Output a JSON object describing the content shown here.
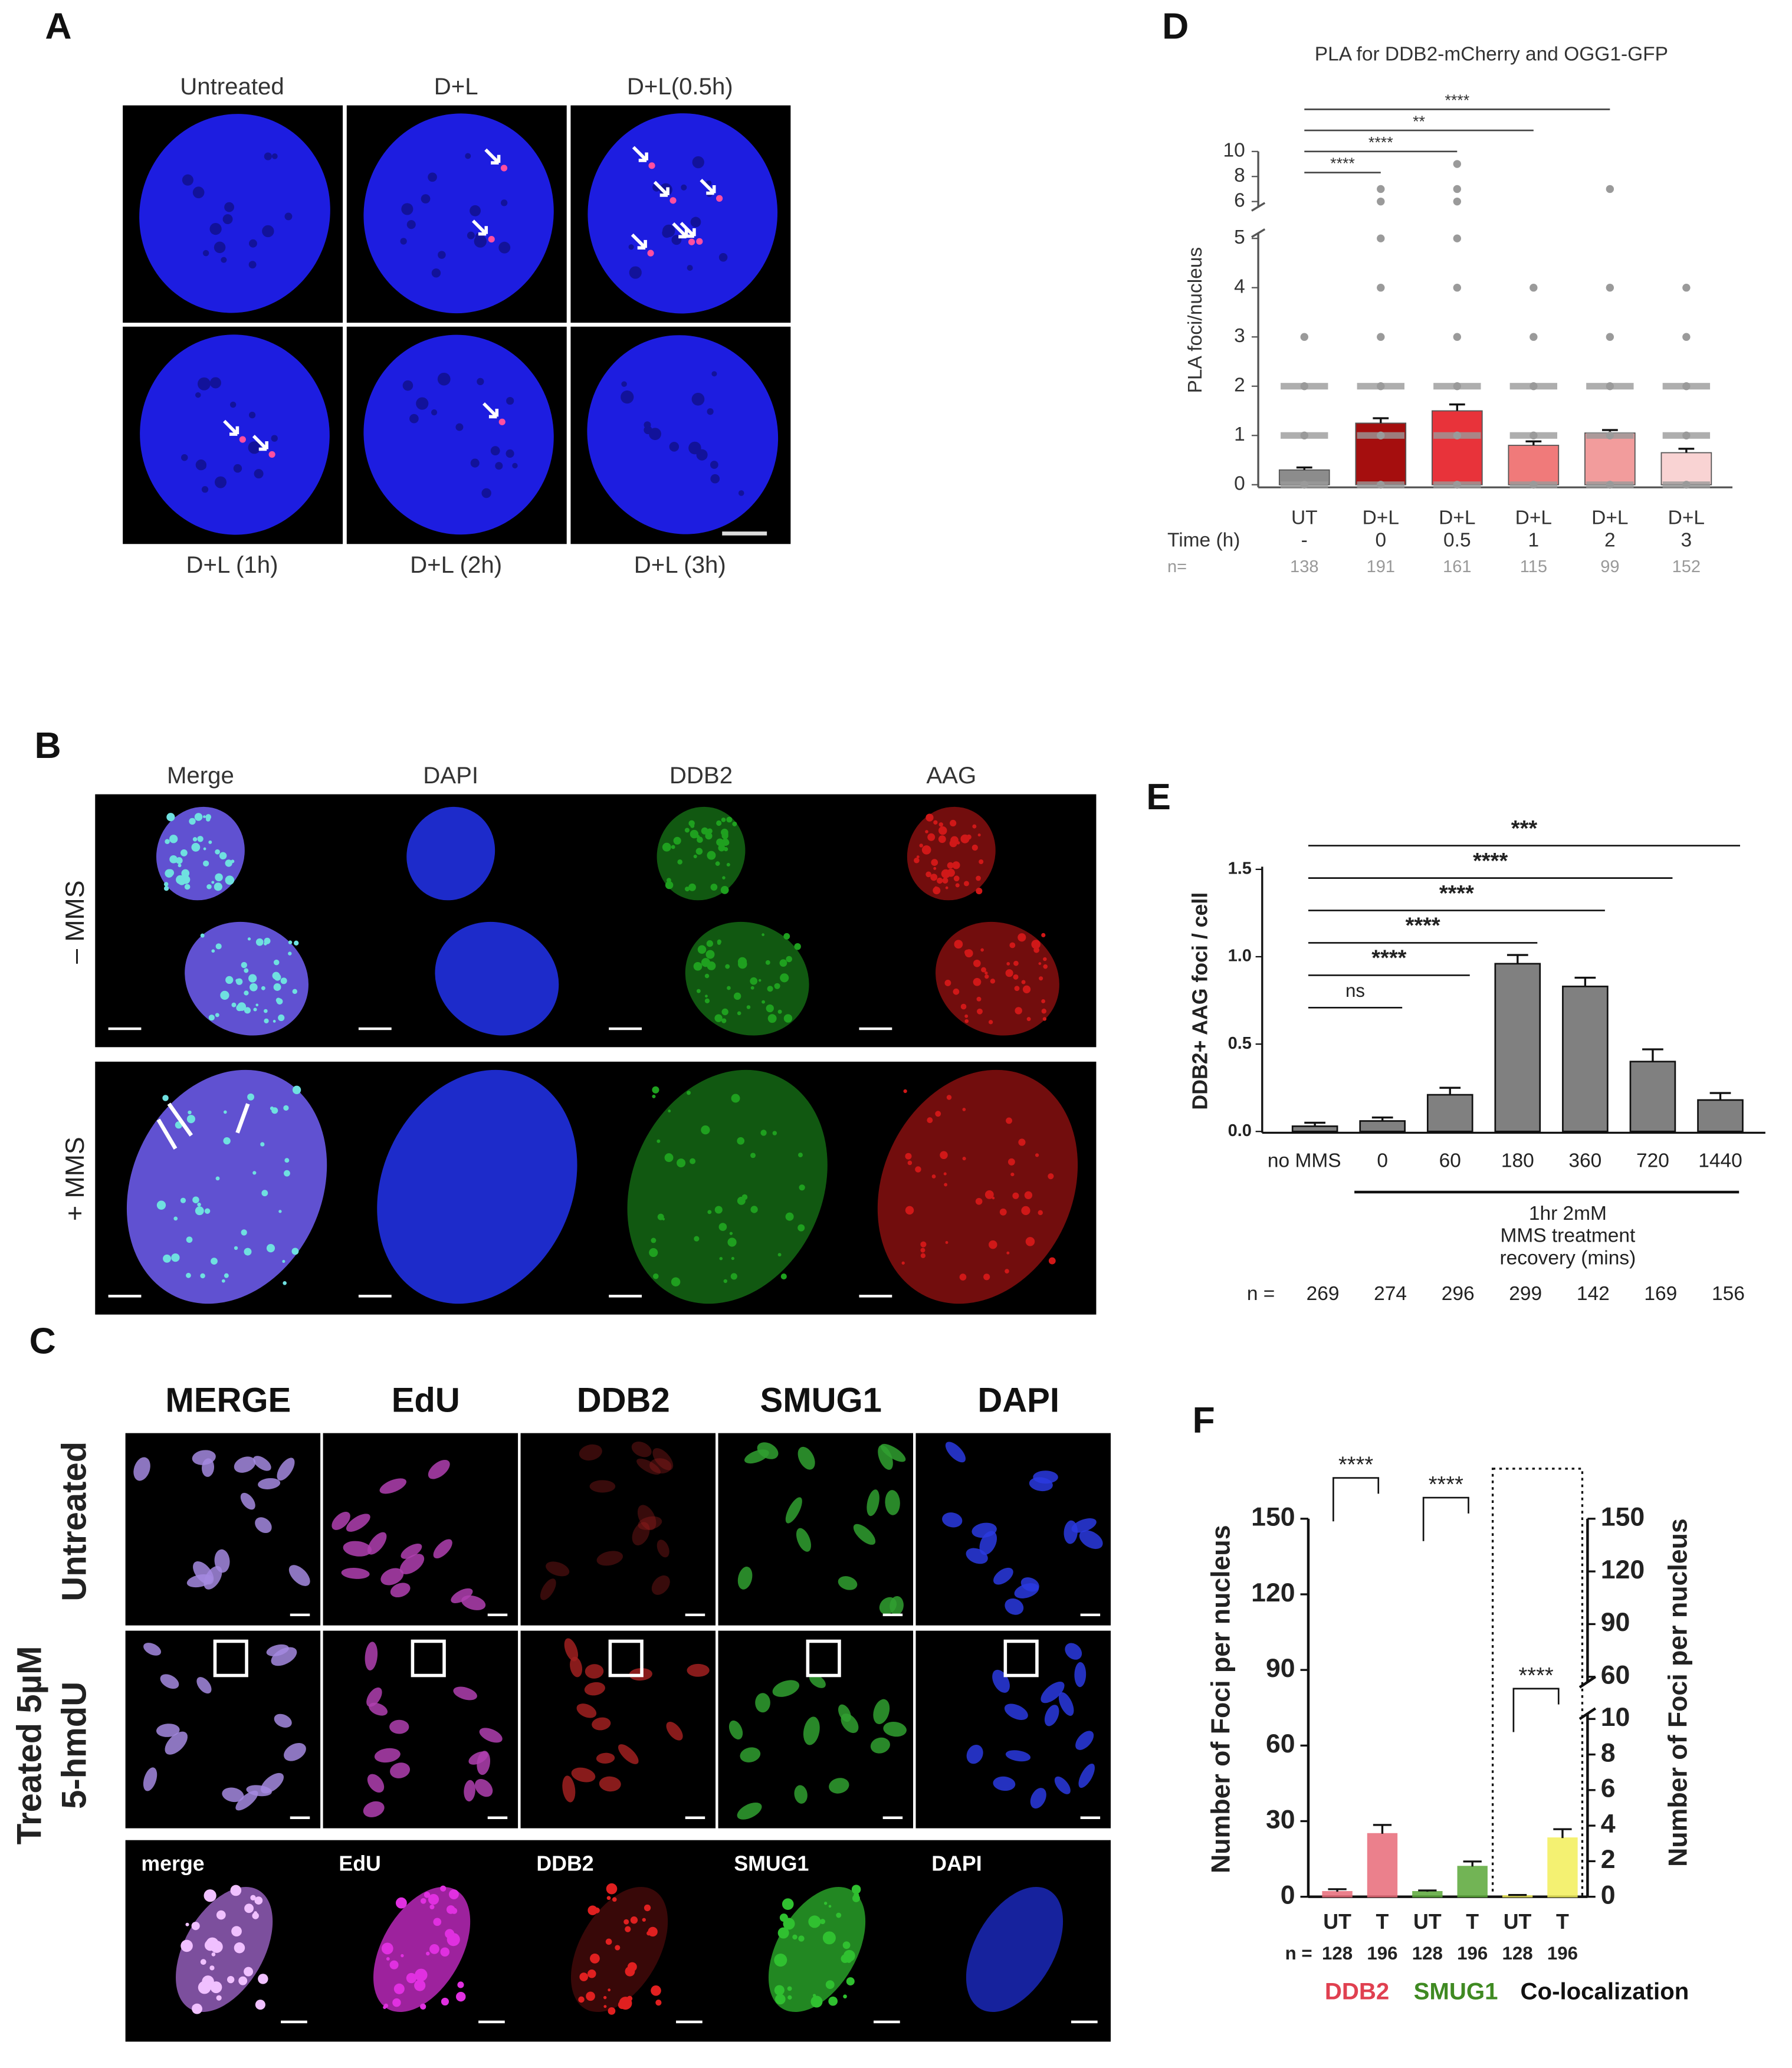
{
  "panel_a": {
    "label": "A",
    "top_labels": [
      "Untreated",
      "D+L",
      "D+L(0.5h)"
    ],
    "bottom_labels": [
      "D+L (1h)",
      "D+L (2h)",
      "D+L (3h)"
    ]
  },
  "panel_b": {
    "label": "B",
    "columns": [
      "Merge",
      "DAPI",
      "DDB2",
      "AAG"
    ],
    "rows": [
      "– MMS",
      "+ MMS"
    ]
  },
  "panel_c": {
    "label": "C",
    "columns": [
      "MERGE",
      "EdU",
      "DDB2",
      "SMUG1",
      "DAPI"
    ],
    "untreated_row": "Untreated",
    "treated_row": [
      "Treated 5µM",
      "5-hmdU"
    ],
    "zoom_columns": [
      "merge",
      "EdU",
      "DDB2",
      "SMUG1",
      "DAPI"
    ]
  },
  "chart_data": [
    {
      "panel": "D",
      "type": "bar",
      "title": "PLA for DDB2-mCherry and OGG1-GFP",
      "y_label": "PLA foci/nucleus",
      "categories": [
        "UT",
        "D+L",
        "D+L",
        "D+L",
        "D+L",
        "D+L"
      ],
      "time_label": "Time (h)",
      "time": [
        "-",
        "0",
        "0.5",
        "1",
        "2",
        "3"
      ],
      "n_label": "n=",
      "n": [
        138,
        191,
        161,
        115,
        99,
        152
      ],
      "values": [
        0.3,
        1.25,
        1.5,
        0.8,
        1.05,
        0.65
      ],
      "errors": [
        0.05,
        0.1,
        0.13,
        0.08,
        0.06,
        0.08
      ],
      "colors": [
        "#8c8c8c",
        "#a50e0e",
        "#e8333a",
        "#f07a7a",
        "#f29c9c",
        "#f9d3d3"
      ],
      "points": [
        [
          0,
          1,
          2,
          3
        ],
        [
          0,
          1,
          2,
          3,
          4,
          5,
          6,
          7
        ],
        [
          0,
          1,
          2,
          3,
          4,
          5,
          6,
          7,
          9
        ],
        [
          0,
          1,
          2,
          3,
          4
        ],
        [
          0,
          1,
          2,
          3,
          4,
          7
        ],
        [
          0,
          1,
          2,
          3,
          4
        ]
      ],
      "point_color": "#9a9a9a",
      "ylim": [
        0,
        10
      ],
      "axis_break": [
        5,
        6
      ],
      "yticks": [
        0,
        1,
        2,
        3,
        4,
        5,
        6,
        8,
        10
      ],
      "significance": [
        {
          "from": 0,
          "to": 1,
          "label": "****"
        },
        {
          "from": 0,
          "to": 2,
          "label": "****"
        },
        {
          "from": 0,
          "to": 3,
          "label": "**"
        },
        {
          "from": 0,
          "to": 4,
          "label": "****"
        }
      ]
    },
    {
      "panel": "E",
      "type": "bar",
      "y_label": "DDB2+  AAG foci / cell",
      "categories": [
        "no MMS",
        "0",
        "60",
        "180",
        "360",
        "720",
        "1440"
      ],
      "values": [
        0.03,
        0.06,
        0.21,
        0.96,
        0.83,
        0.4,
        0.18
      ],
      "errors": [
        0.02,
        0.02,
        0.04,
        0.05,
        0.05,
        0.07,
        0.04
      ],
      "color": "#808080",
      "ylim": [
        0,
        1.5
      ],
      "yticks": [
        {
          "value": 0,
          "label": "0.0"
        },
        {
          "value": 0.5,
          "label": "0.5"
        },
        {
          "value": 1,
          "label": "1.0"
        },
        {
          "value": 1.5,
          "label": "1.5"
        }
      ],
      "significance": [
        {
          "from": 0,
          "to": 1,
          "label": "ns"
        },
        {
          "from": 0,
          "to": 2,
          "label": "****"
        },
        {
          "from": 0,
          "to": 3,
          "label": "****"
        },
        {
          "from": 0,
          "to": 4,
          "label": "****"
        },
        {
          "from": 0,
          "to": 5,
          "label": "****"
        },
        {
          "from": 0,
          "to": 6,
          "label": "***"
        }
      ],
      "annotation": [
        "1hr 2mM",
        "MMS treatment",
        "recovery (mins)"
      ],
      "n_label": "n =",
      "n": [
        269,
        274,
        296,
        299,
        142,
        169,
        156
      ]
    },
    {
      "panel": "F",
      "type": "bar",
      "y_label": "Number of Foci per nucleus",
      "y2_label": "Number of Foci per nucleus",
      "categories": [
        "UT",
        "T",
        "UT",
        "T",
        "UT",
        "T"
      ],
      "n_label": "n =",
      "n": [
        128,
        196,
        128,
        196,
        128,
        196
      ],
      "ylim": [
        0,
        150
      ],
      "yticks": [
        0,
        30,
        60,
        90,
        120,
        150
      ],
      "y2lim": [
        0,
        150
      ],
      "y2ticks": [
        0,
        2,
        4,
        6,
        8,
        10,
        60,
        90,
        120,
        150
      ],
      "y2_break": [
        10,
        60
      ],
      "series": [
        {
          "name": "DDB2",
          "color": "#e86b78",
          "label_color": "#e04050",
          "values": [
            2,
            25,
            null,
            null,
            null,
            null
          ],
          "errors": [
            1,
            3.5,
            null,
            null,
            null,
            null
          ]
        },
        {
          "name": "SMUG1",
          "color": "#5aa838",
          "label_color": "#3f8a22",
          "values": [
            null,
            null,
            2,
            12,
            null,
            null
          ],
          "errors": [
            null,
            null,
            0.5,
            2,
            null,
            null
          ]
        },
        {
          "name": "Co-localization",
          "color": "#f3ef5a",
          "label_color": "#111111",
          "axis": "y2",
          "values": [
            null,
            null,
            null,
            null,
            0.05,
            3.3
          ],
          "errors": [
            null,
            null,
            null,
            null,
            0.05,
            0.5
          ]
        }
      ],
      "significance": [
        {
          "from": 0,
          "to": 1,
          "label": "****"
        },
        {
          "from": 2,
          "to": 3,
          "label": "****"
        },
        {
          "from": 4,
          "to": 5,
          "label": "****"
        }
      ]
    }
  ]
}
